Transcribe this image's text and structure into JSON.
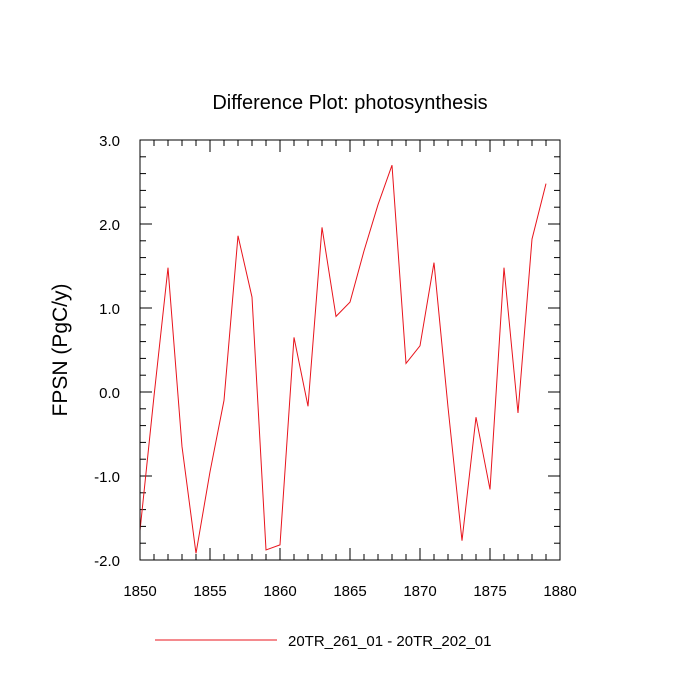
{
  "chart_data": {
    "type": "line",
    "title": "Difference Plot: photosynthesis",
    "xlabel": "",
    "ylabel": "FPSN  (PgC/y)",
    "xlim": [
      1850,
      1880
    ],
    "ylim": [
      -2.0,
      3.0
    ],
    "x_ticks": [
      1850,
      1855,
      1860,
      1865,
      1870,
      1875,
      1880
    ],
    "y_ticks": [
      "-2.0",
      "-1.0",
      "0.0",
      "1.0",
      "2.0",
      "3.0"
    ],
    "y_tick_values": [
      -2,
      -1,
      0,
      1,
      2,
      3
    ],
    "grid": false,
    "legend_position": "bottom-center",
    "series": [
      {
        "name": "20TR_261_01 - 20TR_202_01",
        "color": "#e8141c",
        "x": [
          1850,
          1851,
          1852,
          1853,
          1854,
          1855,
          1856,
          1857,
          1858,
          1859,
          1860,
          1861,
          1862,
          1863,
          1864,
          1865,
          1866,
          1867,
          1868,
          1869,
          1870,
          1871,
          1872,
          1873,
          1874,
          1875,
          1876,
          1877,
          1878,
          1879
        ],
        "values": [
          -1.65,
          -0.05,
          1.48,
          -0.65,
          -1.92,
          -0.95,
          -0.1,
          1.86,
          1.13,
          -1.88,
          -1.82,
          0.65,
          -0.17,
          1.96,
          0.9,
          1.07,
          1.68,
          2.23,
          2.7,
          0.34,
          0.55,
          1.54,
          -0.18,
          -1.77,
          -0.3,
          -1.16,
          1.48,
          -0.25,
          1.82,
          2.48
        ]
      }
    ]
  }
}
